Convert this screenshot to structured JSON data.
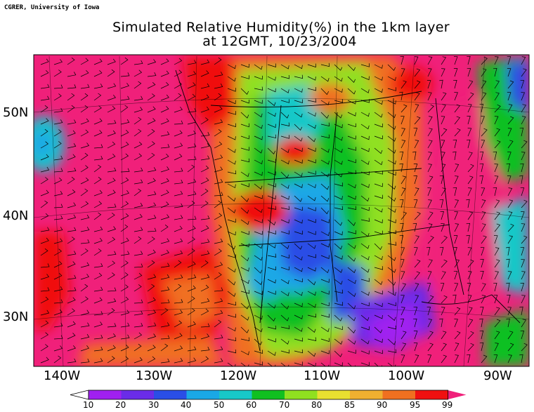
{
  "credit": "CGRER, University of Iowa",
  "title_line1": "Simulated Relative Humidity(%) in the 1km layer",
  "title_line2": "at 12GMT, 10/23/2004",
  "lat_labels": [
    "50N",
    "40N",
    "30N"
  ],
  "lon_labels": [
    "140W",
    "130W",
    "120W",
    "110W",
    "100W",
    "90W"
  ],
  "colorbar": {
    "levels": [
      "10",
      "20",
      "30",
      "40",
      "50",
      "60",
      "70",
      "80",
      "85",
      "90",
      "95",
      "99"
    ],
    "colors": [
      "#ffffff",
      "#a020f0",
      "#6a2ce8",
      "#2a4ee6",
      "#1aa8e6",
      "#18c8c8",
      "#10c020",
      "#90e020",
      "#e8e030",
      "#f0b030",
      "#f07020",
      "#f01010",
      "#f0207a"
    ]
  }
}
